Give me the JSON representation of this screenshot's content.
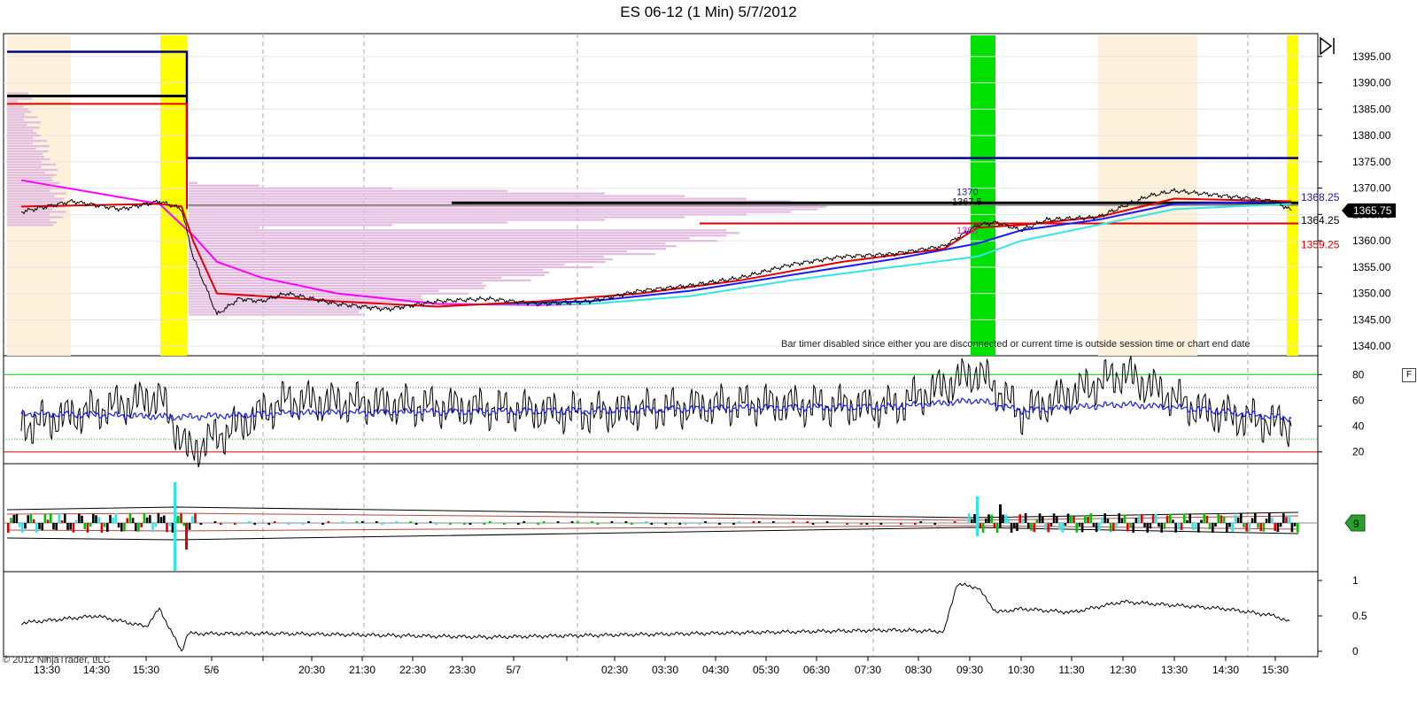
{
  "window": {
    "title": "ES 06-12 (1 Min)  5/7/2012",
    "copyright": "© 2012 NinjaTrader, LLC",
    "bar_timer_message": "Bar timer disabled since either you are disconnected or current time is outside session time or chart end date",
    "button_f": "F"
  },
  "colors": {
    "price": "#000000",
    "ema_red": "#e00000",
    "ema_blue": "#1a1aff",
    "ema_cyan": "#33e6e6",
    "vwap_magenta": "#ff00ff",
    "level_navy": "#00008b",
    "level_black": "#000000",
    "level_red": "#e00000",
    "session_yellow": "#ffff00",
    "session_green": "#00e000",
    "session_beige": "#fdf1dc",
    "profile_pink": "#e2bde0",
    "osc_green": "#00cc00"
  },
  "chart_data": [
    {
      "type": "line",
      "title": "ES 06-12 (1 Min)  5/7/2012",
      "x_ticks": [
        "13:30",
        "14:30",
        "15:30",
        "5/6",
        "20:30",
        "21:30",
        "22:30",
        "23:30",
        "5/7",
        "02:30",
        "03:30",
        "04:30",
        "05:30",
        "06:30",
        "07:30",
        "08:30",
        "09:30",
        "10:30",
        "11:30",
        "12:30",
        "13:30",
        "14:30",
        "15:30"
      ],
      "y_ticks": [
        1395.0,
        1390.0,
        1385.0,
        1380.0,
        1375.0,
        1370.0,
        1365.0,
        1360.0,
        1355.0,
        1350.0,
        1345.0,
        1340.0
      ],
      "ylim": [
        1338.5,
        1398.0
      ],
      "grid": true,
      "series": [
        {
          "x": [
            "13:00",
            "14:00",
            "15:00",
            "15:45",
            "16:00",
            "16:30",
            "17:30",
            "18:15",
            "19:00",
            "20:00",
            "21:00",
            "22:00",
            "23:00",
            "00:00",
            "01:00",
            "02:00",
            "03:00",
            "04:00",
            "05:00",
            "06:00",
            "07:00",
            "08:00",
            "09:00",
            "09:40",
            "10:00",
            "10:30",
            "11:00",
            "12:00",
            "12:30",
            "13:00",
            "13:30",
            "14:00",
            "14:30",
            "15:00",
            "15:30",
            "15:40"
          ],
          "values": [
            1365.5,
            1367.5,
            1366.0,
            1367.5,
            1366.0,
            1357.0,
            1346.0,
            1349.0,
            1348.5,
            1350.0,
            1348.0,
            1347.0,
            1348.5,
            1349.0,
            1348.0,
            1348.5,
            1350.5,
            1351.5,
            1353.0,
            1355.5,
            1357.0,
            1357.5,
            1359.0,
            1363.0,
            1363.5,
            1362.0,
            1364.0,
            1364.5,
            1366.5,
            1368.5,
            1369.5,
            1369.0,
            1368.5,
            1368.0,
            1367.5,
            1365.75
          ]
        },
        {
          "x": [
            "13:00",
            "15:45",
            "16:00",
            "16:30",
            "17:30",
            "19:00",
            "21:00",
            "23:00",
            "01:00",
            "03:00",
            "05:00",
            "07:00",
            "09:00",
            "09:40",
            "10:30",
            "12:00",
            "13:30",
            "15:40"
          ],
          "values": [
            1366.5,
            1367.0,
            1366.5,
            1360.0,
            1350.0,
            1349.5,
            1348.5,
            1347.5,
            1348.5,
            1350.0,
            1352.5,
            1356.0,
            1358.5,
            1362.5,
            1363.0,
            1364.5,
            1368.0,
            1367.5
          ]
        },
        {
          "x": [
            "00:00",
            "02:00",
            "04:00",
            "06:00",
            "08:00",
            "09:40",
            "10:30",
            "12:00",
            "13:30",
            "15:40"
          ],
          "values": [
            1348.0,
            1348.5,
            1350.5,
            1353.5,
            1356.5,
            1359.5,
            1362.0,
            1364.0,
            1367.0,
            1367.5
          ]
        },
        {
          "x": [
            "00:00",
            "02:00",
            "04:00",
            "06:00",
            "08:00",
            "09:40",
            "10:30",
            "12:00",
            "13:30",
            "15:40"
          ],
          "values": [
            1348.0,
            1348.0,
            1349.5,
            1352.5,
            1355.0,
            1357.0,
            1360.0,
            1363.0,
            1366.0,
            1367.0
          ]
        },
        {
          "x": [
            "13:00",
            "15:45",
            "16:30",
            "17:30",
            "19:00",
            "21:00",
            "23:00",
            "01:00",
            "02:00"
          ],
          "values": [
            1371.5,
            1367.0,
            1361.0,
            1356.0,
            1353.0,
            1350.0,
            1348.0,
            1347.8,
            1348.0
          ]
        }
      ],
      "levels": [
        {
          "label": "1368.25",
          "value": 1368.25
        },
        {
          "label": "1364.25",
          "value": 1364.25
        },
        {
          "label": "1359.25",
          "value": 1359.25
        },
        {
          "label": "1370",
          "value": 1370
        },
        {
          "label": "1367.5",
          "value": 1367.5
        },
        {
          "label": "1360",
          "value": 1360
        }
      ],
      "last_price": {
        "label": "1365.75",
        "value": 1365.75
      }
    },
    {
      "type": "line",
      "y_ticks": [
        80,
        60,
        40,
        20
      ],
      "ylim": [
        15,
        85
      ],
      "reference_lines": [
        80,
        70,
        30,
        20
      ],
      "series": [
        {
          "x": [
            "13:00",
            "15:45",
            "16:15",
            "20:00",
            "23:00",
            "02:00",
            "05:00",
            "08:00",
            "09:40",
            "10:30",
            "12:30",
            "14:00",
            "15:40"
          ],
          "values": [
            40,
            63,
            20,
            60,
            55,
            50,
            57,
            55,
            82,
            50,
            81,
            52,
            40
          ]
        },
        {
          "x": [
            "13:00",
            "16:00",
            "20:00",
            "23:00",
            "02:00",
            "05:00",
            "08:00",
            "09:40",
            "10:30",
            "12:30",
            "14:00",
            "15:40"
          ],
          "values": [
            50,
            47,
            50,
            51,
            52,
            54,
            55,
            60,
            52,
            57,
            53,
            46
          ]
        }
      ]
    },
    {
      "type": "bar",
      "marker_label": "9"
    },
    {
      "type": "line",
      "y_ticks": [
        1,
        0.5,
        0
      ],
      "ylim": [
        0,
        1
      ],
      "series": [
        {
          "x": [
            "13:00",
            "14:30",
            "15:30",
            "15:45",
            "16:00",
            "16:15",
            "20:00",
            "00:00",
            "04:00",
            "08:00",
            "09:00",
            "09:15",
            "09:40",
            "10:00",
            "10:30",
            "11:30",
            "12:30",
            "13:30",
            "14:30",
            "15:30",
            "15:40"
          ],
          "values": [
            0.4,
            0.5,
            0.35,
            0.6,
            0.0,
            0.25,
            0.25,
            0.2,
            0.25,
            0.3,
            0.28,
            0.95,
            0.9,
            0.55,
            0.6,
            0.55,
            0.7,
            0.65,
            0.6,
            0.5,
            0.4
          ]
        }
      ]
    }
  ]
}
